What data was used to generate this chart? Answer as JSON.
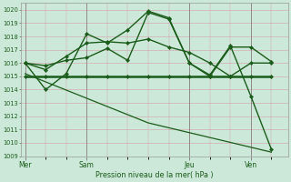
{
  "xlabel": "Pression niveau de la mer( hPa )",
  "ylim": [
    1009,
    1020.5
  ],
  "yticks": [
    1009,
    1010,
    1011,
    1012,
    1013,
    1014,
    1015,
    1016,
    1017,
    1018,
    1019,
    1020
  ],
  "xtick_labels": [
    "Mer",
    "Sam",
    "Jeu",
    "Ven"
  ],
  "xtick_positions": [
    0,
    3,
    8,
    11
  ],
  "bg_color": "#cce8d8",
  "grid_color": "#d4a0a8",
  "line_color": "#1a5c1a",
  "total_x": 13,
  "xlim": [
    -0.2,
    12.8
  ],
  "line_flat": {
    "x": [
      0,
      1,
      2,
      3,
      4,
      5,
      6,
      7,
      8,
      9,
      10,
      11,
      12
    ],
    "y": [
      1015.0,
      1015.0,
      1015.0,
      1015.0,
      1015.0,
      1015.0,
      1015.0,
      1015.0,
      1015.0,
      1015.0,
      1015.0,
      1015.0,
      1015.0
    ],
    "lw": 1.8,
    "marker": true
  },
  "line_diag": {
    "x": [
      0,
      6,
      12
    ],
    "y": [
      1015.2,
      1011.5,
      1009.3
    ],
    "lw": 0.9,
    "marker": false
  },
  "line_mid": {
    "x": [
      0,
      1,
      2,
      3,
      4,
      5,
      6,
      7,
      8,
      9,
      10,
      11,
      12
    ],
    "y": [
      1016.0,
      1015.5,
      1016.5,
      1017.5,
      1017.6,
      1017.5,
      1017.8,
      1017.2,
      1016.8,
      1016.0,
      1015.0,
      1016.0,
      1016.0
    ],
    "lw": 1.0,
    "marker": true
  },
  "line_upper": {
    "x": [
      0,
      1,
      2,
      3,
      4,
      5,
      6,
      7,
      8,
      9,
      10,
      11,
      12
    ],
    "y": [
      1016.0,
      1015.8,
      1016.2,
      1016.4,
      1017.1,
      1016.2,
      1019.8,
      1019.3,
      1016.0,
      1015.0,
      1017.2,
      1017.2,
      1016.1
    ],
    "lw": 1.0,
    "marker": true
  },
  "line_jagged": {
    "x": [
      0,
      1,
      2,
      3,
      4,
      5,
      6,
      7,
      8,
      9,
      10,
      11,
      12
    ],
    "y": [
      1016.0,
      1014.0,
      1015.2,
      1018.2,
      1017.5,
      1018.5,
      1019.9,
      1019.4,
      1016.0,
      1015.1,
      1017.3,
      1013.5,
      1009.5
    ],
    "lw": 1.0,
    "marker": true
  }
}
